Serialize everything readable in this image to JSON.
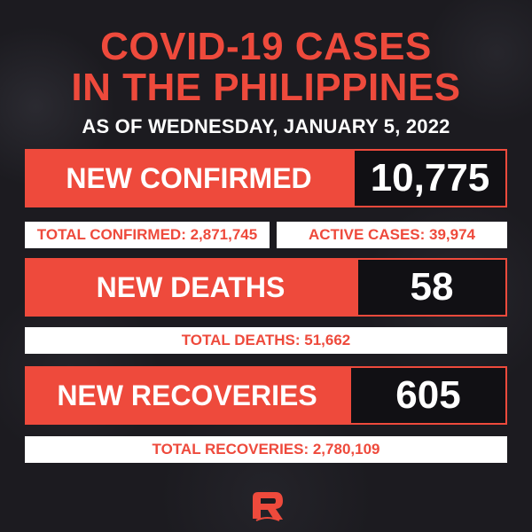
{
  "title_line1": "COVID-19 CASES",
  "title_line2": "IN THE PHILIPPINES",
  "subtitle": "AS OF WEDNESDAY, JANUARY 5, 2022",
  "new_confirmed": {
    "label": "NEW CONFIRMED",
    "value": "10,775"
  },
  "total_confirmed": "TOTAL CONFIRMED: 2,871,745",
  "active_cases": "ACTIVE CASES: 39,974",
  "new_deaths": {
    "label": "NEW DEATHS",
    "value": "58"
  },
  "total_deaths": "TOTAL DEATHS: 51,662",
  "new_recoveries": {
    "label": "NEW RECOVERIES",
    "value": "605"
  },
  "total_recoveries": "TOTAL RECOVERIES: 2,780,109",
  "logo": {
    "icon": "rappler-logo-icon"
  },
  "colors": {
    "accent": "#ee4a3c",
    "background": "#1c1b20",
    "value_box": "#111014"
  }
}
